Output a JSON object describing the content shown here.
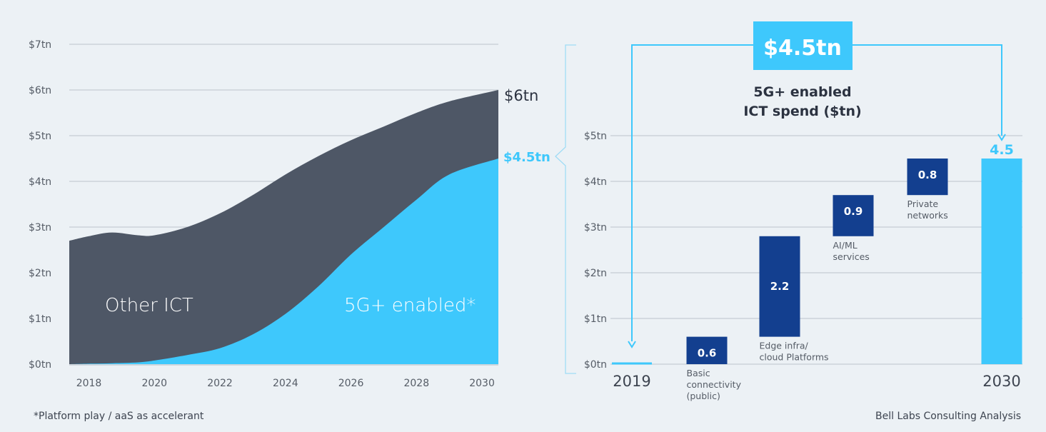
{
  "colors": {
    "background": "#ecf1f5",
    "other_ict": "#4e5766",
    "fiveg": "#3ec8fc",
    "bar_dark": "#133f8f",
    "axis_text": "#555c66",
    "grid": "#c5ccd3",
    "title_text": "#2b3240"
  },
  "footnote": "*Platform play / aaS as accelerant",
  "source": "Bell Labs Consulting Analysis",
  "chart_data": [
    {
      "type": "area",
      "stacked": true,
      "title": "",
      "xlabel": "",
      "ylabel": "",
      "ylim": [
        0,
        7
      ],
      "xlim": [
        2017.4,
        2030.5
      ],
      "grid": true,
      "y_ticks": [
        "$0tn",
        "$1tn",
        "$2tn",
        "$3tn",
        "$4tn",
        "$5tn",
        "$6tn",
        "$7tn"
      ],
      "x_ticks": [
        "2018",
        "2020",
        "2022",
        "2024",
        "2026",
        "2028",
        "2030"
      ],
      "x": [
        2017.4,
        2018,
        2018.7,
        2019.5,
        2020,
        2021,
        2022,
        2023,
        2024,
        2025,
        2026,
        2027,
        2028,
        2029,
        2030.5
      ],
      "series": [
        {
          "name": "5G+ enabled*",
          "label": "5G+ enabled*",
          "values": [
            0,
            0.01,
            0.02,
            0.04,
            0.08,
            0.2,
            0.35,
            0.65,
            1.1,
            1.7,
            2.4,
            3.0,
            3.6,
            4.15,
            4.5
          ]
        },
        {
          "name": "Other ICT",
          "label": "Other ICT",
          "total_values": [
            2.7,
            2.8,
            2.88,
            2.82,
            2.82,
            3.0,
            3.3,
            3.7,
            4.15,
            4.55,
            4.9,
            5.2,
            5.5,
            5.75,
            6.0
          ]
        }
      ],
      "end_labels": {
        "total": "$6tn",
        "fiveg": "$4.5tn"
      }
    },
    {
      "type": "bar",
      "subtype": "waterfall",
      "title": "5G+ enabled ICT spend ($tn)",
      "title_lines": [
        "5G+ enabled",
        "ICT spend ($tn)"
      ],
      "headline": "$4.5tn",
      "ylim": [
        0,
        5
      ],
      "grid": true,
      "y_ticks": [
        "$0tn",
        "$1tn",
        "$2tn",
        "$3tn",
        "$4tn",
        "$5tn"
      ],
      "categories": [
        "2019",
        "Basic connectivity (public)",
        "Edge infra/ cloud Platforms",
        "AI/ML services",
        "Private networks",
        "2030"
      ],
      "bars": [
        {
          "category": "2019",
          "start": 0,
          "value": 0,
          "label": "",
          "caption": [],
          "kind": "start"
        },
        {
          "category": "Basic connectivity (public)",
          "start": 0,
          "value": 0.6,
          "label": "0.6",
          "caption": [
            "Basic",
            "connectivity",
            "(public)"
          ],
          "kind": "step"
        },
        {
          "category": "Edge infra/ cloud Platforms",
          "start": 0.6,
          "value": 2.2,
          "label": "2.2",
          "caption": [
            "Edge infra/",
            "cloud Platforms"
          ],
          "kind": "step"
        },
        {
          "category": "AI/ML services",
          "start": 2.8,
          "value": 0.9,
          "label": "0.9",
          "caption": [
            "AI/ML",
            "services"
          ],
          "kind": "step"
        },
        {
          "category": "Private networks",
          "start": 3.7,
          "value": 0.8,
          "label": "0.8",
          "caption": [
            "Private",
            "networks"
          ],
          "kind": "step"
        },
        {
          "category": "2030",
          "start": 0,
          "value": 4.5,
          "label": "4.5",
          "caption": [],
          "kind": "total"
        }
      ],
      "x_labels": [
        "2019",
        "2030"
      ]
    }
  ]
}
